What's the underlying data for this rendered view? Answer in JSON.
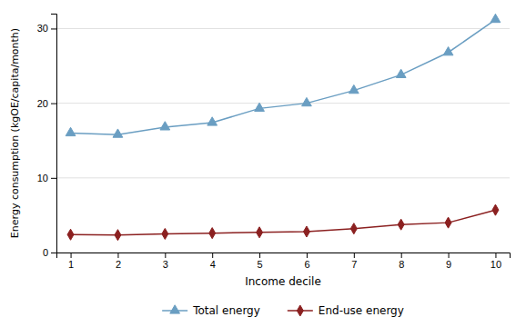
{
  "chart_data": {
    "type": "line",
    "xlabel": "Income decile",
    "ylabel": "Energy consumption (kgOE/capita/month)",
    "x": [
      1,
      2,
      3,
      4,
      5,
      6,
      7,
      8,
      9,
      10
    ],
    "series": [
      {
        "name": "Total energy",
        "color": "#6a9ec2",
        "marker": "triangle",
        "values": [
          16.0,
          15.8,
          16.8,
          17.4,
          19.3,
          20.0,
          21.7,
          23.8,
          26.8,
          31.2
        ]
      },
      {
        "name": "End-use energy",
        "color": "#8b2020",
        "marker": "diamond",
        "values": [
          2.4,
          2.35,
          2.5,
          2.6,
          2.7,
          2.8,
          3.2,
          3.75,
          4.0,
          5.7
        ]
      }
    ],
    "xlim": [
      0.7,
      10.3
    ],
    "xticks": [
      1,
      2,
      3,
      4,
      5,
      6,
      7,
      8,
      9,
      10
    ],
    "ylim": [
      0,
      32
    ],
    "yticks": [
      0,
      10,
      20,
      30
    ],
    "grid": "y",
    "legend": "bottom"
  }
}
